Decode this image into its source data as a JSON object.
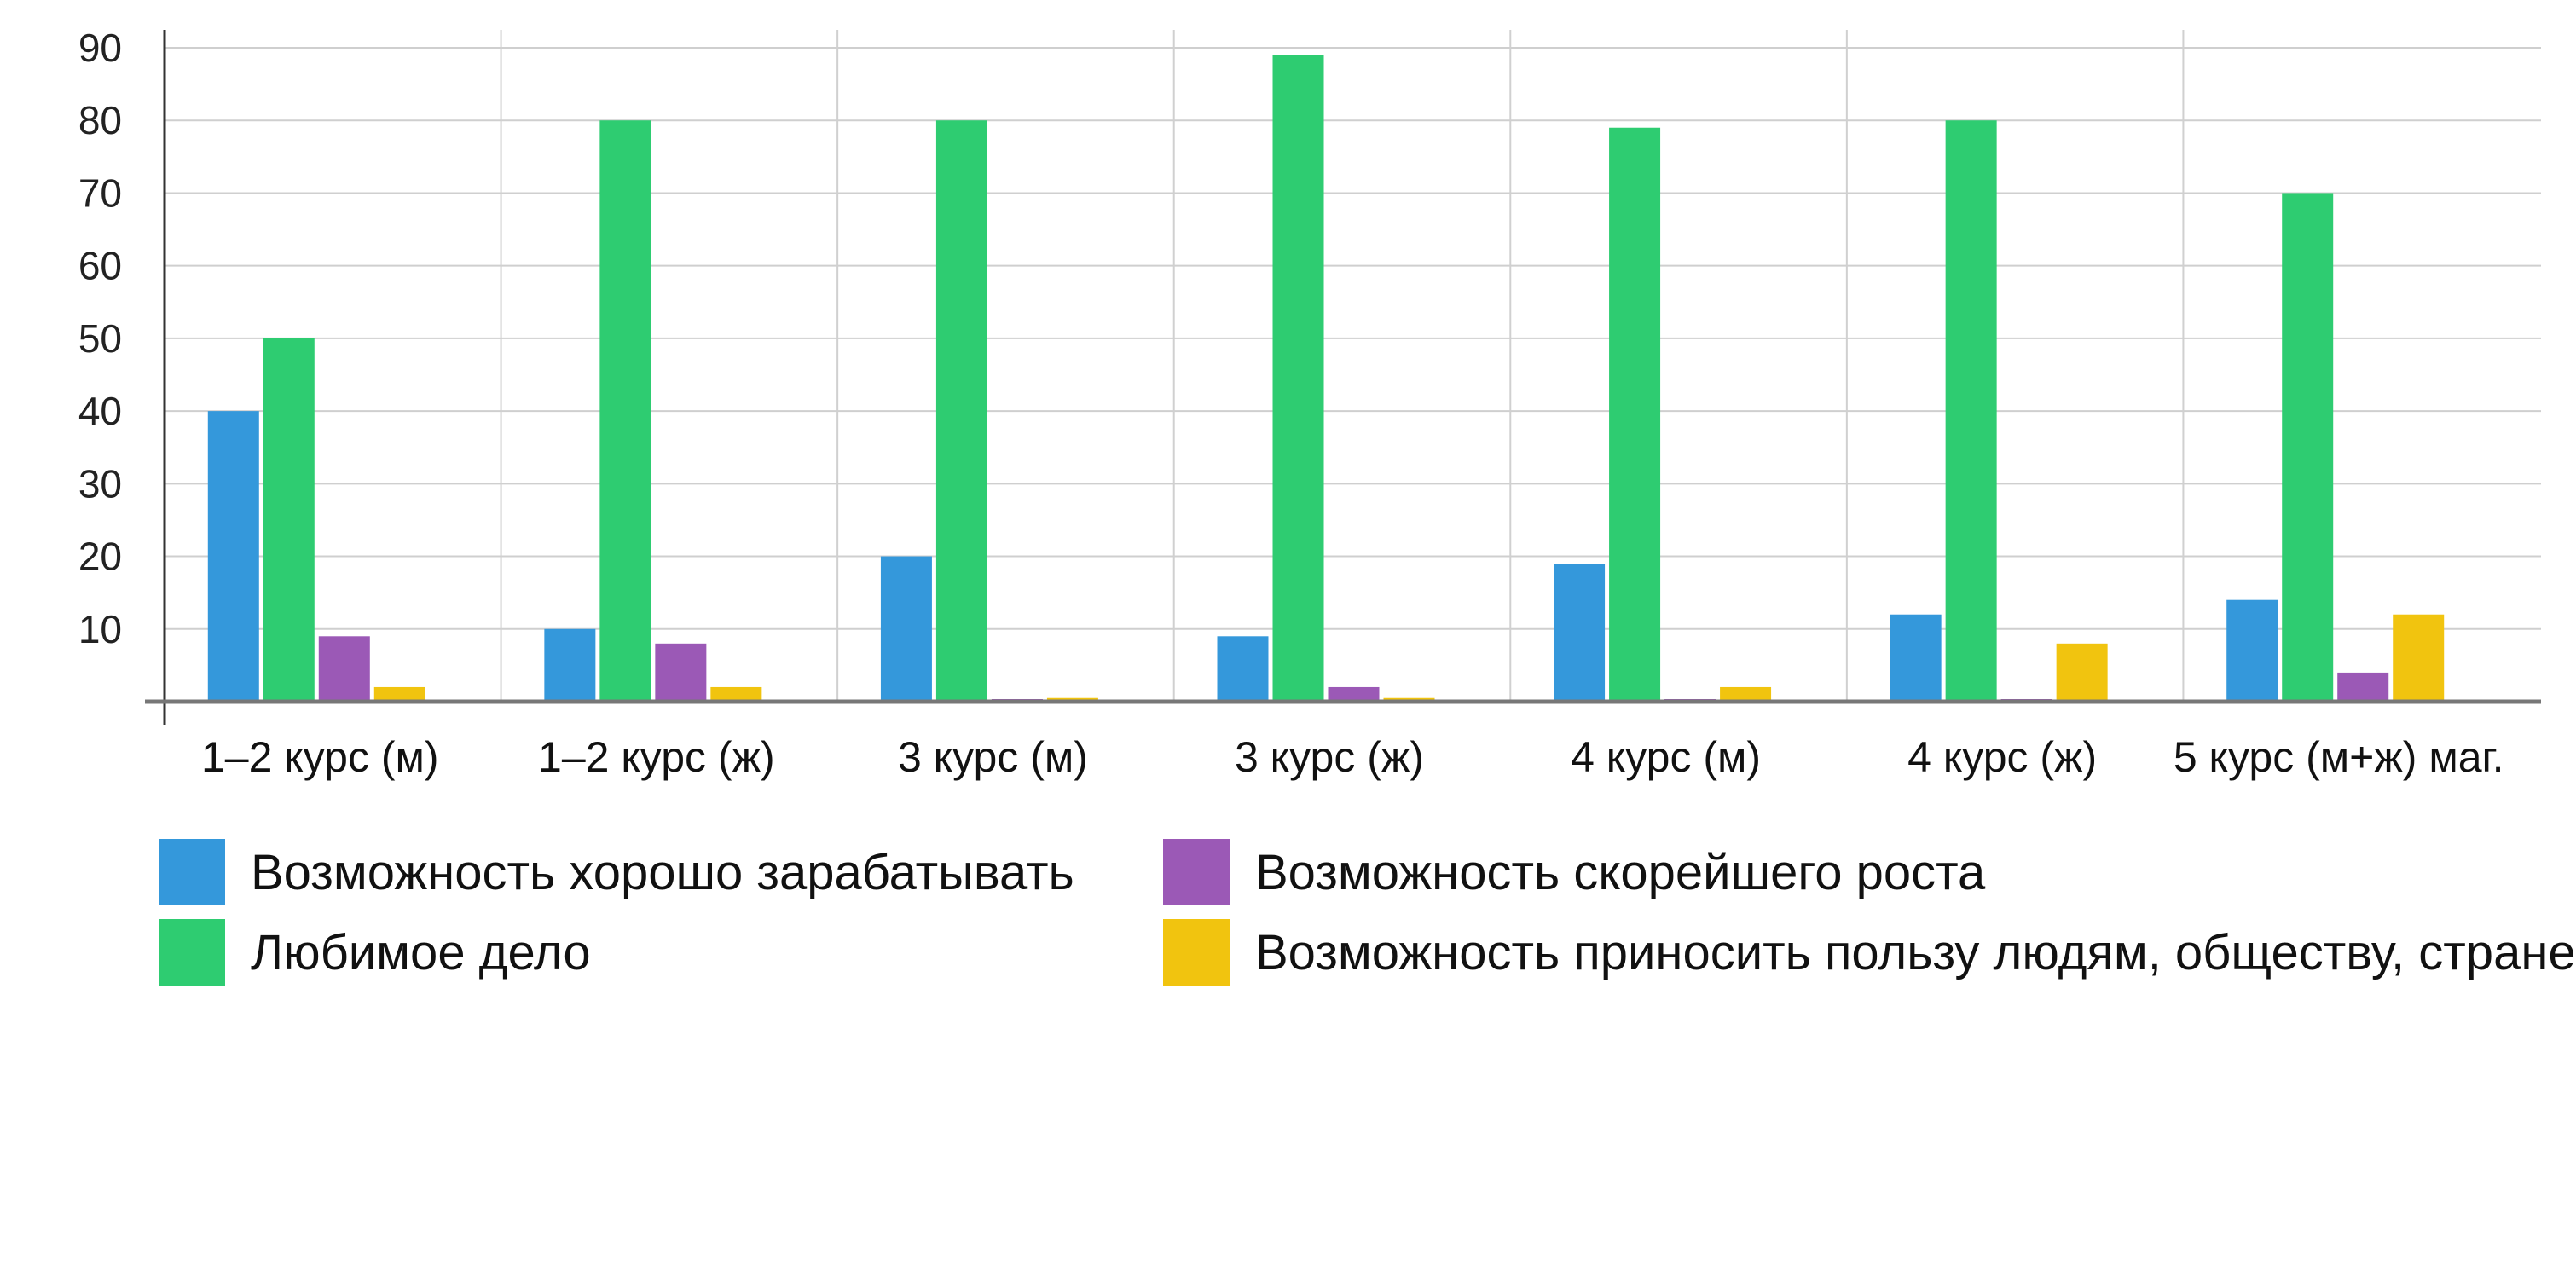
{
  "chart_data": {
    "type": "bar",
    "categories": [
      "1–2 курс (м)",
      "1–2 курс (ж)",
      "3 курс (м)",
      "3 курс (ж)",
      "4 курс (м)",
      "4 курс (ж)",
      "5 курс (м+ж) маг."
    ],
    "series": [
      {
        "name": "Возможность хорошо зарабатывать",
        "color": "#3498db",
        "values": [
          40,
          10,
          20,
          9,
          19,
          12,
          14
        ]
      },
      {
        "name": "Любимое дело",
        "color": "#2ecc71",
        "values": [
          50,
          80,
          80,
          89,
          79,
          80,
          70
        ]
      },
      {
        "name": "Возможность скорейшего роста",
        "color": "#9b59b6",
        "values": [
          9,
          8,
          0.3,
          2,
          0.3,
          0.3,
          4
        ]
      },
      {
        "name": "Возможность приносить пользу людям, обществу, стране",
        "color": "#f1c40f",
        "values": [
          2,
          2,
          0.5,
          0.5,
          2,
          8,
          12
        ]
      }
    ],
    "ylim": [
      0,
      90
    ],
    "yticks": [
      10,
      20,
      30,
      40,
      50,
      60,
      70,
      80,
      90
    ],
    "grid": true,
    "legend_position": "bottom"
  }
}
